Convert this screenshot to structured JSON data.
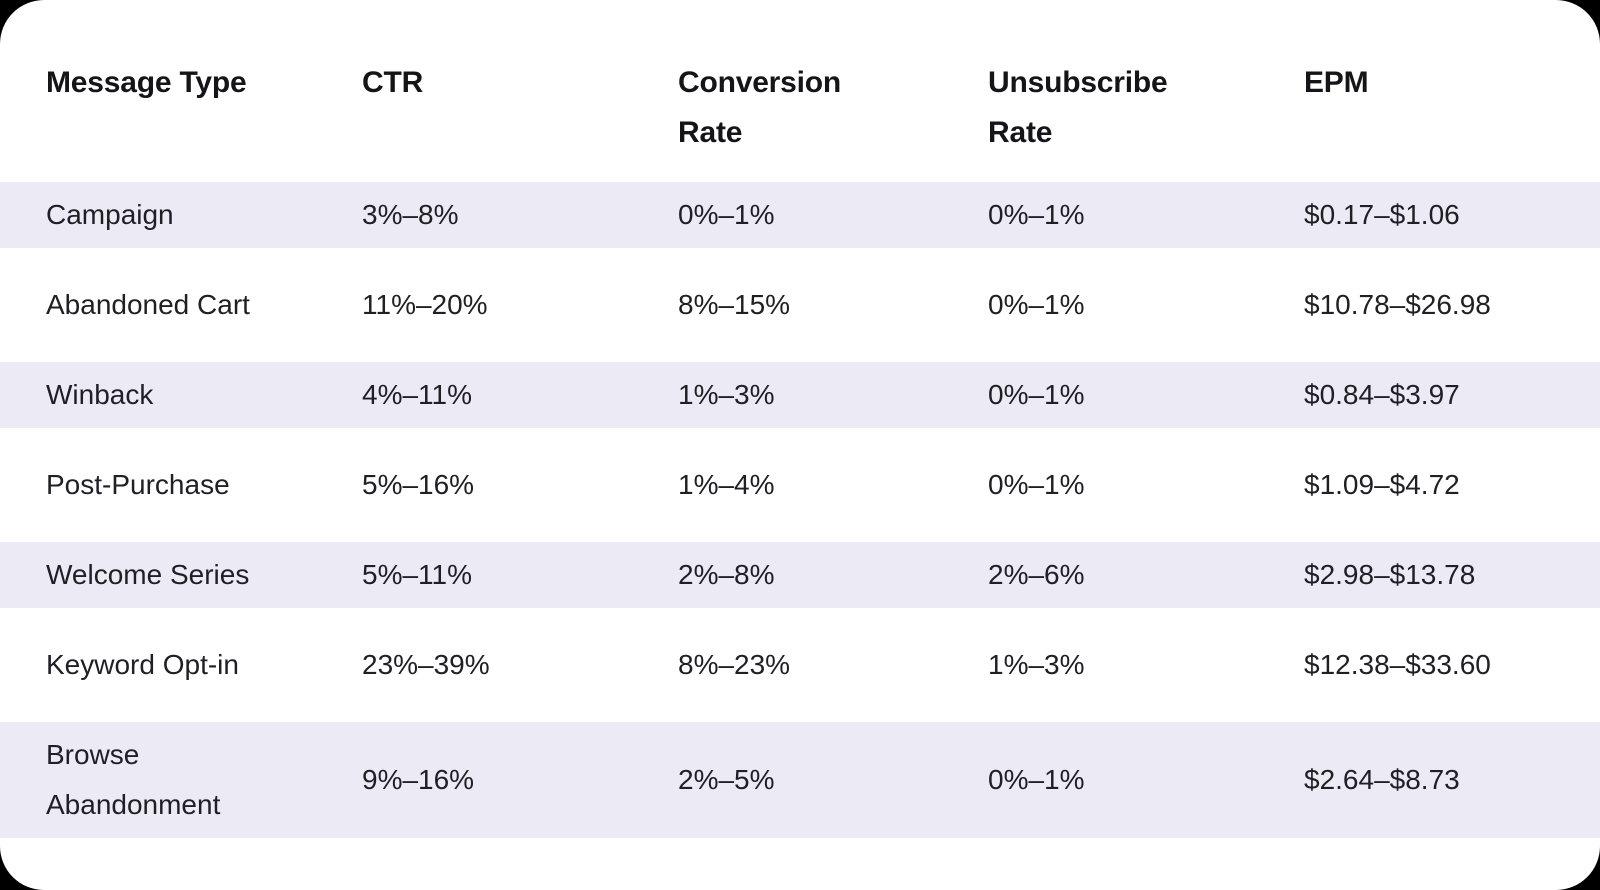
{
  "colors": {
    "page_background": "#000000",
    "card_background": "#ffffff",
    "stripe": "#ECEAF4",
    "header_text": "#141419",
    "body_text": "#1f1f24"
  },
  "table": {
    "headers": [
      "Message Type",
      "CTR",
      "Conversion\nRate",
      "Unsubscribe\nRate",
      "EPM"
    ],
    "rows": [
      {
        "cells": [
          "Campaign",
          "3%–8%",
          "0%–1%",
          "0%–1%",
          "$0.17–$1.06"
        ],
        "striped": true
      },
      {
        "cells": [
          "Abandoned Cart",
          "11%–20%",
          "8%–15%",
          "0%–1%",
          "$10.78–$26.98"
        ],
        "striped": false
      },
      {
        "cells": [
          "Winback",
          "4%–11%",
          "1%–3%",
          "0%–1%",
          "$0.84–$3.97"
        ],
        "striped": true
      },
      {
        "cells": [
          "Post-Purchase",
          "5%–16%",
          "1%–4%",
          "0%–1%",
          "$1.09–$4.72"
        ],
        "striped": false
      },
      {
        "cells": [
          "Welcome Series",
          "5%–11%",
          "2%–8%",
          "2%–6%",
          "$2.98–$13.78"
        ],
        "striped": true
      },
      {
        "cells": [
          "Keyword Opt-in",
          "23%–39%",
          "8%–23%",
          "1%–3%",
          "$12.38–$33.60"
        ],
        "striped": false
      },
      {
        "cells": [
          "Browse\nAbandonment",
          "9%–16%",
          "2%–5%",
          "0%–1%",
          "$2.64–$8.73"
        ],
        "striped": true
      }
    ]
  },
  "chart_data": {
    "type": "table",
    "columns": [
      "Message Type",
      "CTR",
      "Conversion Rate",
      "Unsubscribe Rate",
      "EPM"
    ],
    "rows": [
      [
        "Campaign",
        "3%–8%",
        "0%–1%",
        "0%–1%",
        "$0.17–$1.06"
      ],
      [
        "Abandoned Cart",
        "11%–20%",
        "8%–15%",
        "0%–1%",
        "$10.78–$26.98"
      ],
      [
        "Winback",
        "4%–11%",
        "1%–3%",
        "0%–1%",
        "$0.84–$3.97"
      ],
      [
        "Post-Purchase",
        "5%–16%",
        "1%–4%",
        "0%–1%",
        "$1.09–$4.72"
      ],
      [
        "Welcome Series",
        "5%–11%",
        "2%–8%",
        "2%–6%",
        "$2.98–$13.78"
      ],
      [
        "Keyword Opt-in",
        "23%–39%",
        "8%–23%",
        "1%–3%",
        "$12.38–$33.60"
      ],
      [
        "Browse Abandonment",
        "9%–16%",
        "2%–5%",
        "0%–1%",
        "$2.64–$8.73"
      ]
    ],
    "layout": {
      "striped_row_indices": [
        0,
        2,
        4,
        6
      ],
      "grid": "none",
      "column_alignment": "left"
    }
  }
}
